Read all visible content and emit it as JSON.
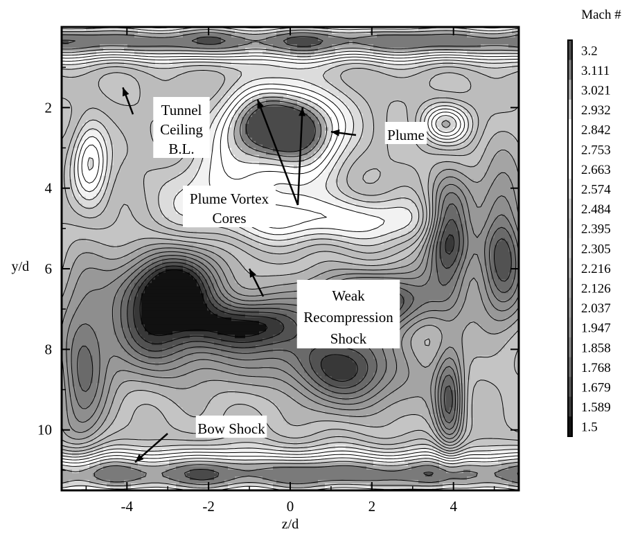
{
  "chart_data": {
    "type": "heatmap",
    "title": "",
    "xlabel": "z/d",
    "ylabel": "y/d",
    "xlim": [
      -5.6,
      5.6
    ],
    "ylim": [
      11.5,
      0.0
    ],
    "y_axis_inverted": true,
    "x_ticks": [
      {
        "value": -4,
        "label": "-4"
      },
      {
        "value": -2,
        "label": "-2"
      },
      {
        "value": 0,
        "label": "0"
      },
      {
        "value": 2,
        "label": "2"
      },
      {
        "value": 4,
        "label": "4"
      }
    ],
    "y_ticks": [
      {
        "value": 2,
        "label": "2"
      },
      {
        "value": 4,
        "label": "4"
      },
      {
        "value": 6,
        "label": "6"
      },
      {
        "value": 8,
        "label": "8"
      },
      {
        "value": 10,
        "label": "10"
      }
    ],
    "colorbar": {
      "title": "Mach #",
      "levels": [
        "3.2",
        "3.111",
        "3.021",
        "2.932",
        "2.842",
        "2.753",
        "2.663",
        "2.574",
        "2.484",
        "2.395",
        "2.305",
        "2.216",
        "2.126",
        "2.037",
        "1.947",
        "1.858",
        "1.768",
        "1.679",
        "1.589",
        "1.5"
      ],
      "colors": [
        "#4a4a4a",
        "#7a7a7a",
        "#a8a8a8",
        "#d6d6d6",
        "#ffffff",
        "#ffffff",
        "#f2f2f2",
        "#dcdcdc",
        "#c6c6c6",
        "#bcbcbc",
        "#c4c4c4",
        "#b4b4b4",
        "#a4a4a4",
        "#989898",
        "#8e8e8e",
        "#7e7e7e",
        "#6a6a6a",
        "#525252",
        "#383838",
        "#111111"
      ]
    },
    "annotations": [
      {
        "id": "ceiling",
        "lines": [
          "Tunnel",
          "Ceiling",
          "B.L."
        ],
        "target": [
          -4.1,
          1.5
        ]
      },
      {
        "id": "plume",
        "lines": [
          "Plume"
        ],
        "target": [
          1.0,
          2.6
        ]
      },
      {
        "id": "vortex",
        "lines": [
          "Plume Vortex",
          "Cores"
        ],
        "target": [
          -0.8,
          1.8
        ],
        "target2": [
          0.3,
          2.0
        ]
      },
      {
        "id": "recompression",
        "lines": [
          "Weak",
          "Recompression",
          "Shock"
        ],
        "target": [
          -1.0,
          6.0
        ]
      },
      {
        "id": "bow",
        "lines": [
          "Bow Shock"
        ],
        "target": [
          -3.8,
          10.8
        ]
      }
    ],
    "features": [
      {
        "kind": "band",
        "y": 0.35,
        "width": 0.5,
        "level": 1.0
      },
      {
        "kind": "band",
        "y": 11.1,
        "width": 0.6,
        "level": 1.0
      },
      {
        "kind": "blob",
        "x": -0.8,
        "y": 2.5,
        "sx": 1.1,
        "sy": 1.0,
        "level": 0.95
      },
      {
        "kind": "blob",
        "x": 0.4,
        "y": 2.5,
        "sx": 1.0,
        "sy": 1.0,
        "level": 0.95
      },
      {
        "kind": "blob",
        "x": -4.9,
        "y": 3.3,
        "sx": 0.45,
        "sy": 1.0,
        "level": 0.7
      },
      {
        "kind": "blob",
        "x": -2.9,
        "y": 6.4,
        "sx": 1.3,
        "sy": 0.9,
        "level": -1.0
      },
      {
        "kind": "blob",
        "x": -3.2,
        "y": 7.6,
        "sx": 1.4,
        "sy": 1.2,
        "level": -0.8
      },
      {
        "kind": "blob",
        "x": -1.0,
        "y": 7.4,
        "sx": 1.4,
        "sy": 0.6,
        "level": -0.85
      },
      {
        "kind": "blob",
        "x": 2.0,
        "y": 6.8,
        "sx": 1.6,
        "sy": 0.7,
        "level": -1.0
      },
      {
        "kind": "blob",
        "x": 3.9,
        "y": 5.2,
        "sx": 0.55,
        "sy": 1.4,
        "level": -1.05
      },
      {
        "kind": "blob",
        "x": 5.2,
        "y": 5.5,
        "sx": 0.6,
        "sy": 1.8,
        "level": -0.9
      },
      {
        "kind": "blob",
        "x": 1.6,
        "y": 8.6,
        "sx": 1.4,
        "sy": 1.0,
        "level": -0.75
      },
      {
        "kind": "blob",
        "x": 3.9,
        "y": 9.3,
        "sx": 0.35,
        "sy": 1.3,
        "level": -0.8
      },
      {
        "kind": "blob",
        "x": -5.1,
        "y": 8.5,
        "sx": 0.6,
        "sy": 2.2,
        "level": -0.65
      },
      {
        "kind": "blob",
        "x": 0.0,
        "y": 8.2,
        "sx": 1.8,
        "sy": 0.8,
        "level": -0.45
      },
      {
        "kind": "blob",
        "x": 1.0,
        "y": 4.8,
        "sx": 3.0,
        "sy": 0.6,
        "level": 0.55
      },
      {
        "kind": "blob",
        "x": -1.5,
        "y": 4.0,
        "sx": 2.0,
        "sy": 0.9,
        "level": 0.4
      },
      {
        "kind": "blob",
        "x": 3.8,
        "y": 2.4,
        "sx": 0.6,
        "sy": 0.5,
        "level": 0.8
      }
    ]
  }
}
